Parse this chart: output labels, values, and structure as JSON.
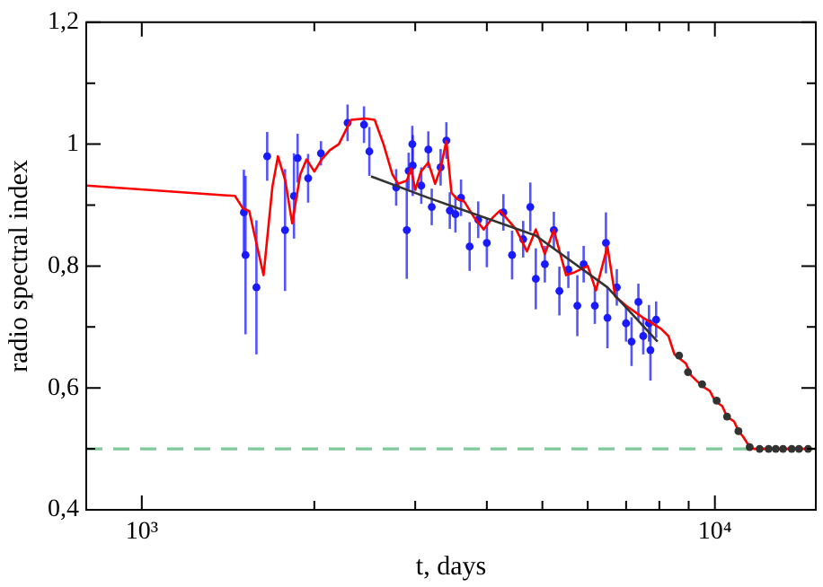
{
  "chart_data": {
    "type": "line",
    "xlabel": "t, days",
    "ylabel": "radio spectral index",
    "log": "x",
    "xlim": [
      800,
      15000
    ],
    "ylim": [
      0.4,
      1.2
    ],
    "xticks": [
      {
        "value": 1000,
        "label": "10³"
      },
      {
        "value": 2000,
        "label": null
      },
      {
        "value": 3000,
        "label": null
      },
      {
        "value": 4000,
        "label": null
      },
      {
        "value": 5000,
        "label": null
      },
      {
        "value": 6000,
        "label": null
      },
      {
        "value": 7000,
        "label": null
      },
      {
        "value": 8000,
        "label": null
      },
      {
        "value": 9000,
        "label": null
      },
      {
        "value": 10000,
        "label": "10⁴"
      }
    ],
    "yticks": [
      {
        "value": 0.4,
        "label": "0,4"
      },
      {
        "value": 0.5,
        "label": null
      },
      {
        "value": 0.6,
        "label": "0,6"
      },
      {
        "value": 0.7,
        "label": null
      },
      {
        "value": 0.8,
        "label": "0,8"
      },
      {
        "value": 0.9,
        "label": null
      },
      {
        "value": 1,
        "label": "1"
      },
      {
        "value": 1.1,
        "label": null
      },
      {
        "value": 1.2,
        "label": "1,2"
      }
    ],
    "marker": "circle",
    "legend": false,
    "ref_lines": [
      {
        "axis": "y",
        "value": 0.5,
        "color": "#7fc99a",
        "line_style": "dashed"
      }
    ],
    "series": [
      {
        "type": "scatter",
        "color": "#1a1aff",
        "x": [
          1507,
          1517,
          1585,
          1655,
          1778,
          1843,
          1870,
          1951,
          2054,
          2286,
          2442,
          2495,
          2779,
          2900,
          2922,
          2965,
          2970,
          3074,
          3162,
          3206,
          3322,
          3400,
          3447,
          3526,
          3606,
          3733,
          3864,
          4000,
          4275,
          4427,
          4629,
          4763,
          4870,
          5050,
          5236,
          5354,
          5550,
          5754,
          5902,
          6173,
          6455,
          6494,
          6743,
          6998,
          7155,
          7354,
          7499,
          7674,
          7718,
          7897
        ],
        "values": [
          0.888,
          0.818,
          0.765,
          0.98,
          0.859,
          0.915,
          0.977,
          0.944,
          0.985,
          1.035,
          1.032,
          0.988,
          0.929,
          0.859,
          0.956,
          1.0,
          0.965,
          0.932,
          0.991,
          0.897,
          0.962,
          1.006,
          0.891,
          0.885,
          0.912,
          0.832,
          0.876,
          0.838,
          0.888,
          0.818,
          0.844,
          0.897,
          0.779,
          0.803,
          0.859,
          0.759,
          0.794,
          0.735,
          0.803,
          0.735,
          0.838,
          0.715,
          0.765,
          0.706,
          0.676,
          0.741,
          0.685,
          0.706,
          0.662,
          0.712
        ],
        "errors": [
          0.07,
          0.13,
          0.11,
          0.04,
          0.1,
          0.07,
          0.04,
          0.04,
          0.02,
          0.03,
          0.03,
          0.04,
          0.03,
          0.08,
          0.03,
          0.03,
          0.05,
          0.03,
          0.03,
          0.03,
          0.03,
          0.03,
          0.03,
          0.03,
          0.03,
          0.04,
          0.03,
          0.04,
          0.03,
          0.04,
          0.03,
          0.04,
          0.05,
          0.03,
          0.03,
          0.04,
          0.03,
          0.05,
          0.03,
          0.03,
          0.05,
          0.05,
          0.03,
          0.03,
          0.04,
          0.03,
          0.03,
          0.03,
          0.05,
          0.03
        ]
      },
      {
        "marker": "none",
        "color": "#ff0000",
        "x": [
          800,
          1454,
          1500,
          1540,
          1631,
          1690,
          1728,
          1780,
          1830,
          1890,
          1939,
          2000,
          2060,
          2128,
          2207,
          2319,
          2450,
          2549,
          2641,
          2738,
          2800,
          2900,
          2950,
          3000,
          3070,
          3162,
          3250,
          3320,
          3400,
          3470,
          3550,
          3652,
          3800,
          3950,
          4100,
          4217,
          4500,
          4700,
          4870,
          5050,
          5236,
          5500,
          5700,
          6000,
          6200,
          6494,
          6700,
          6998,
          7499,
          8058,
          8300,
          8500,
          8900,
          9100,
          9500,
          9800,
          10000,
          10300,
          10500,
          10800,
          11000,
          11200,
          11450,
          11700,
          14860
        ],
        "values": [
          0.932,
          0.915,
          0.895,
          0.89,
          0.785,
          0.93,
          0.98,
          0.94,
          0.87,
          0.95,
          0.975,
          0.955,
          0.975,
          0.99,
          1.0,
          1.04,
          1.042,
          1.04,
          1.0,
          0.95,
          0.935,
          0.94,
          0.96,
          0.925,
          0.955,
          0.97,
          0.935,
          0.96,
          1.005,
          0.92,
          0.91,
          0.906,
          0.88,
          0.86,
          0.88,
          0.891,
          0.86,
          0.824,
          0.86,
          0.82,
          0.859,
          0.785,
          0.79,
          0.8,
          0.76,
          0.832,
          0.75,
          0.735,
          0.715,
          0.697,
          0.685,
          0.655,
          0.64,
          0.62,
          0.603,
          0.595,
          0.579,
          0.57,
          0.553,
          0.545,
          0.529,
          0.52,
          0.506,
          0.5,
          0.5
        ]
      },
      {
        "marker": "none",
        "color": "#333333",
        "x": [
          2512,
          3162,
          4870,
          6494,
          7943
        ],
        "values": [
          0.947,
          0.912,
          0.85,
          0.765,
          0.676
        ]
      },
      {
        "type": "scatter",
        "color": "#333333",
        "x": [
          8660,
          8977,
          9499,
          10072,
          10500,
          10993,
          11500,
          11967,
          12409,
          12770,
          13150,
          13615,
          14020,
          14540
        ],
        "values": [
          0.653,
          0.626,
          0.606,
          0.579,
          0.553,
          0.529,
          0.503,
          0.5,
          0.5,
          0.5,
          0.5,
          0.5,
          0.5,
          0.5
        ]
      }
    ]
  }
}
